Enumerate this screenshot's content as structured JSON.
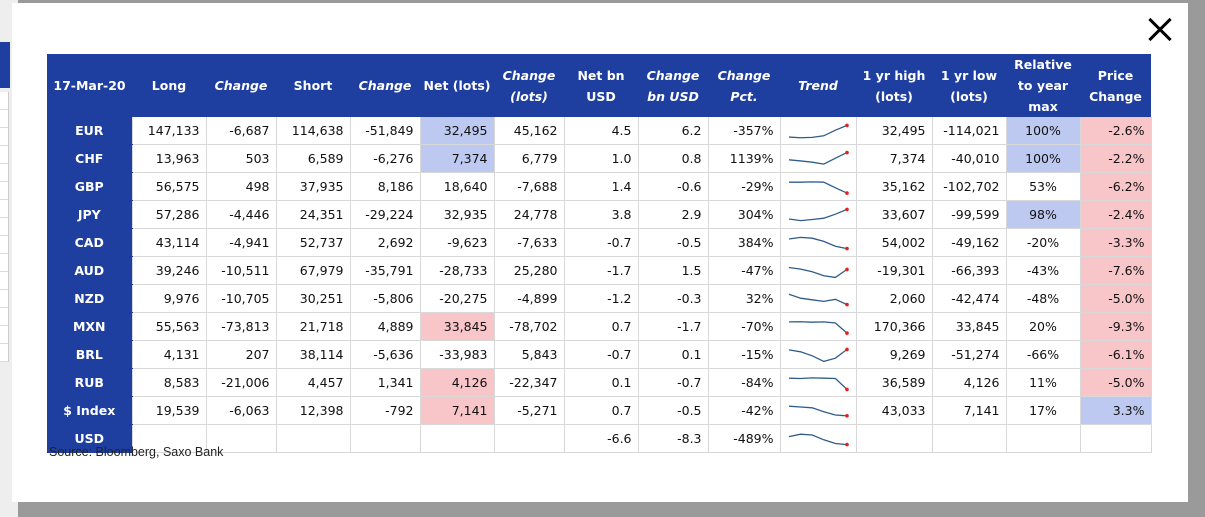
{
  "columns": [
    {
      "label": "17-Mar-20",
      "italic": false
    },
    {
      "label": "Long",
      "italic": false
    },
    {
      "label": "Change",
      "italic": true
    },
    {
      "label": "Short",
      "italic": false
    },
    {
      "label": "Change",
      "italic": true
    },
    {
      "label": "Net (lots)",
      "italic": false
    },
    {
      "label": "Change (lots)",
      "italic": true
    },
    {
      "label": "Net bn USD",
      "italic": false
    },
    {
      "label": "Change bn USD",
      "italic": true
    },
    {
      "label": "Change Pct.",
      "italic": true
    },
    {
      "label": "Trend",
      "italic": true
    },
    {
      "label": "1 yr high (lots)",
      "italic": false
    },
    {
      "label": "1 yr low (lots)",
      "italic": false
    },
    {
      "label": "Relative to year max",
      "italic": false
    },
    {
      "label": "Price Change",
      "italic": false
    }
  ],
  "rows": [
    {
      "label": "EUR",
      "long": "147,133",
      "change": "-6,687",
      "short": "114,638",
      "change_short": "-51,849",
      "net": "32,495",
      "change_lots": "45,162",
      "net_usd": "4.5",
      "change_usd": "6.2",
      "change_pct": "-357%",
      "trend": [
        0.12,
        0.08,
        0.1,
        0.2,
        0.55,
        0.85
      ],
      "high": "32,495",
      "low": "-114,021",
      "rel": "100%",
      "price": "-2.6%"
    },
    {
      "label": "CHF",
      "long": "13,963",
      "change": "503",
      "short": "6,589",
      "change_short": "-6,276",
      "net": "7,374",
      "change_lots": "6,779",
      "net_usd": "1.0",
      "change_usd": "0.8",
      "change_pct": "1139%",
      "trend": [
        0.45,
        0.38,
        0.3,
        0.18,
        0.55,
        0.9
      ],
      "high": "7,374",
      "low": "-40,010",
      "rel": "100%",
      "price": "-2.2%"
    },
    {
      "label": "GBP",
      "long": "56,575",
      "change": "498",
      "short": "37,935",
      "change_short": "8,186",
      "net": "18,640",
      "change_lots": "-7,688",
      "net_usd": "1.4",
      "change_usd": "-0.6",
      "change_pct": "-29%",
      "trend": [
        0.8,
        0.8,
        0.82,
        0.8,
        0.45,
        0.12
      ],
      "high": "35,162",
      "low": "-102,702",
      "rel": "53%",
      "price": "-6.2%"
    },
    {
      "label": "JPY",
      "long": "57,286",
      "change": "-4,446",
      "short": "24,351",
      "change_short": "-29,224",
      "net": "32,935",
      "change_lots": "24,778",
      "net_usd": "3.8",
      "change_usd": "2.9",
      "change_pct": "304%",
      "trend": [
        0.25,
        0.15,
        0.22,
        0.3,
        0.55,
        0.85
      ],
      "high": "33,607",
      "low": "-99,599",
      "rel": "98%",
      "price": "-2.4%"
    },
    {
      "label": "CAD",
      "long": "43,114",
      "change": "-4,941",
      "short": "52,737",
      "change_short": "2,692",
      "net": "-9,623",
      "change_lots": "-7,633",
      "net_usd": "-0.7",
      "change_usd": "-0.5",
      "change_pct": "384%",
      "trend": [
        0.75,
        0.85,
        0.8,
        0.6,
        0.3,
        0.15
      ],
      "high": "54,002",
      "low": "-49,162",
      "rel": "-20%",
      "price": "-3.3%"
    },
    {
      "label": "AUD",
      "long": "39,246",
      "change": "-10,511",
      "short": "67,979",
      "change_short": "-35,791",
      "net": "-28,733",
      "change_lots": "25,280",
      "net_usd": "-1.7",
      "change_usd": "1.5",
      "change_pct": "-47%",
      "trend": [
        0.72,
        0.62,
        0.45,
        0.2,
        0.1,
        0.6
      ],
      "high": "-19,301",
      "low": "-66,393",
      "rel": "-43%",
      "price": "-7.6%"
    },
    {
      "label": "NZD",
      "long": "9,976",
      "change": "-10,705",
      "short": "30,251",
      "change_short": "-5,806",
      "net": "-20,275",
      "change_lots": "-4,899",
      "net_usd": "-1.2",
      "change_usd": "-0.3",
      "change_pct": "32%",
      "trend": [
        0.8,
        0.55,
        0.45,
        0.35,
        0.48,
        0.15
      ],
      "high": "2,060",
      "low": "-42,474",
      "rel": "-48%",
      "price": "-5.0%"
    },
    {
      "label": "MXN",
      "long": "55,563",
      "change": "-73,813",
      "short": "21,718",
      "change_short": "4,889",
      "net": "33,845",
      "change_lots": "-78,702",
      "net_usd": "0.7",
      "change_usd": "-1.7",
      "change_pct": "-70%",
      "trend": [
        0.82,
        0.83,
        0.8,
        0.82,
        0.75,
        0.12
      ],
      "high": "170,366",
      "low": "33,845",
      "rel": "20%",
      "price": "-9.3%"
    },
    {
      "label": "BRL",
      "long": "4,131",
      "change": "207",
      "short": "38,114",
      "change_short": "-5,636",
      "net": "-33,983",
      "change_lots": "5,843",
      "net_usd": "-0.7",
      "change_usd": "0.1",
      "change_pct": "-15%",
      "trend": [
        0.82,
        0.7,
        0.45,
        0.1,
        0.3,
        0.85
      ],
      "high": "9,269",
      "low": "-51,274",
      "rel": "-66%",
      "price": "-6.1%"
    },
    {
      "label": "RUB",
      "long": "8,583",
      "change": "-21,006",
      "short": "4,457",
      "change_short": "1,341",
      "net": "4,126",
      "change_lots": "-22,347",
      "net_usd": "0.1",
      "change_usd": "-0.7",
      "change_pct": "-84%",
      "trend": [
        0.8,
        0.78,
        0.82,
        0.8,
        0.78,
        0.1
      ],
      "high": "36,589",
      "low": "4,126",
      "rel": "11%",
      "price": "-5.0%"
    },
    {
      "label": "$ Index",
      "long": "19,539",
      "change": "-6,063",
      "short": "12,398",
      "change_short": "-792",
      "net": "7,141",
      "change_lots": "-5,271",
      "net_usd": "0.7",
      "change_usd": "-0.5",
      "change_pct": "-42%",
      "trend": [
        0.8,
        0.75,
        0.7,
        0.45,
        0.25,
        0.2
      ],
      "high": "43,033",
      "low": "7,141",
      "rel": "17%",
      "price": "3.3%"
    },
    {
      "label": "USD",
      "long": "",
      "change": "",
      "short": "",
      "change_short": "",
      "net": "",
      "change_lots": "",
      "net_usd": "-6.6",
      "change_usd": "-8.3",
      "change_pct": "-489%",
      "trend": [
        0.65,
        0.8,
        0.75,
        0.45,
        0.22,
        0.15
      ],
      "high": "",
      "low": "",
      "rel": "",
      "price": ""
    }
  ],
  "highlights": {
    "EUR": {
      "net": "blue",
      "rel": "blue",
      "price": "red"
    },
    "CHF": {
      "net": "blue",
      "rel": "blue",
      "price": "red"
    },
    "GBP": {
      "price": "red"
    },
    "JPY": {
      "rel": "blue",
      "price": "red"
    },
    "CAD": {
      "price": "red"
    },
    "AUD": {
      "price": "red"
    },
    "NZD": {
      "price": "red"
    },
    "MXN": {
      "net": "red",
      "price": "red"
    },
    "BRL": {
      "price": "red"
    },
    "RUB": {
      "net": "red",
      "price": "red"
    },
    "$ Index": {
      "net": "red",
      "price": "blue"
    }
  },
  "colors": {
    "header_bg": "#1f3fa0",
    "negative": "#e8201c",
    "highlight_blue": "#bdc9f0",
    "highlight_red": "#f8c5c9",
    "sparkline": "#2f5c8a",
    "sparkline_end": "#e8201c"
  },
  "source": "Source: Bloomberg, Saxo Bank",
  "icons": {
    "close": "close-icon"
  }
}
